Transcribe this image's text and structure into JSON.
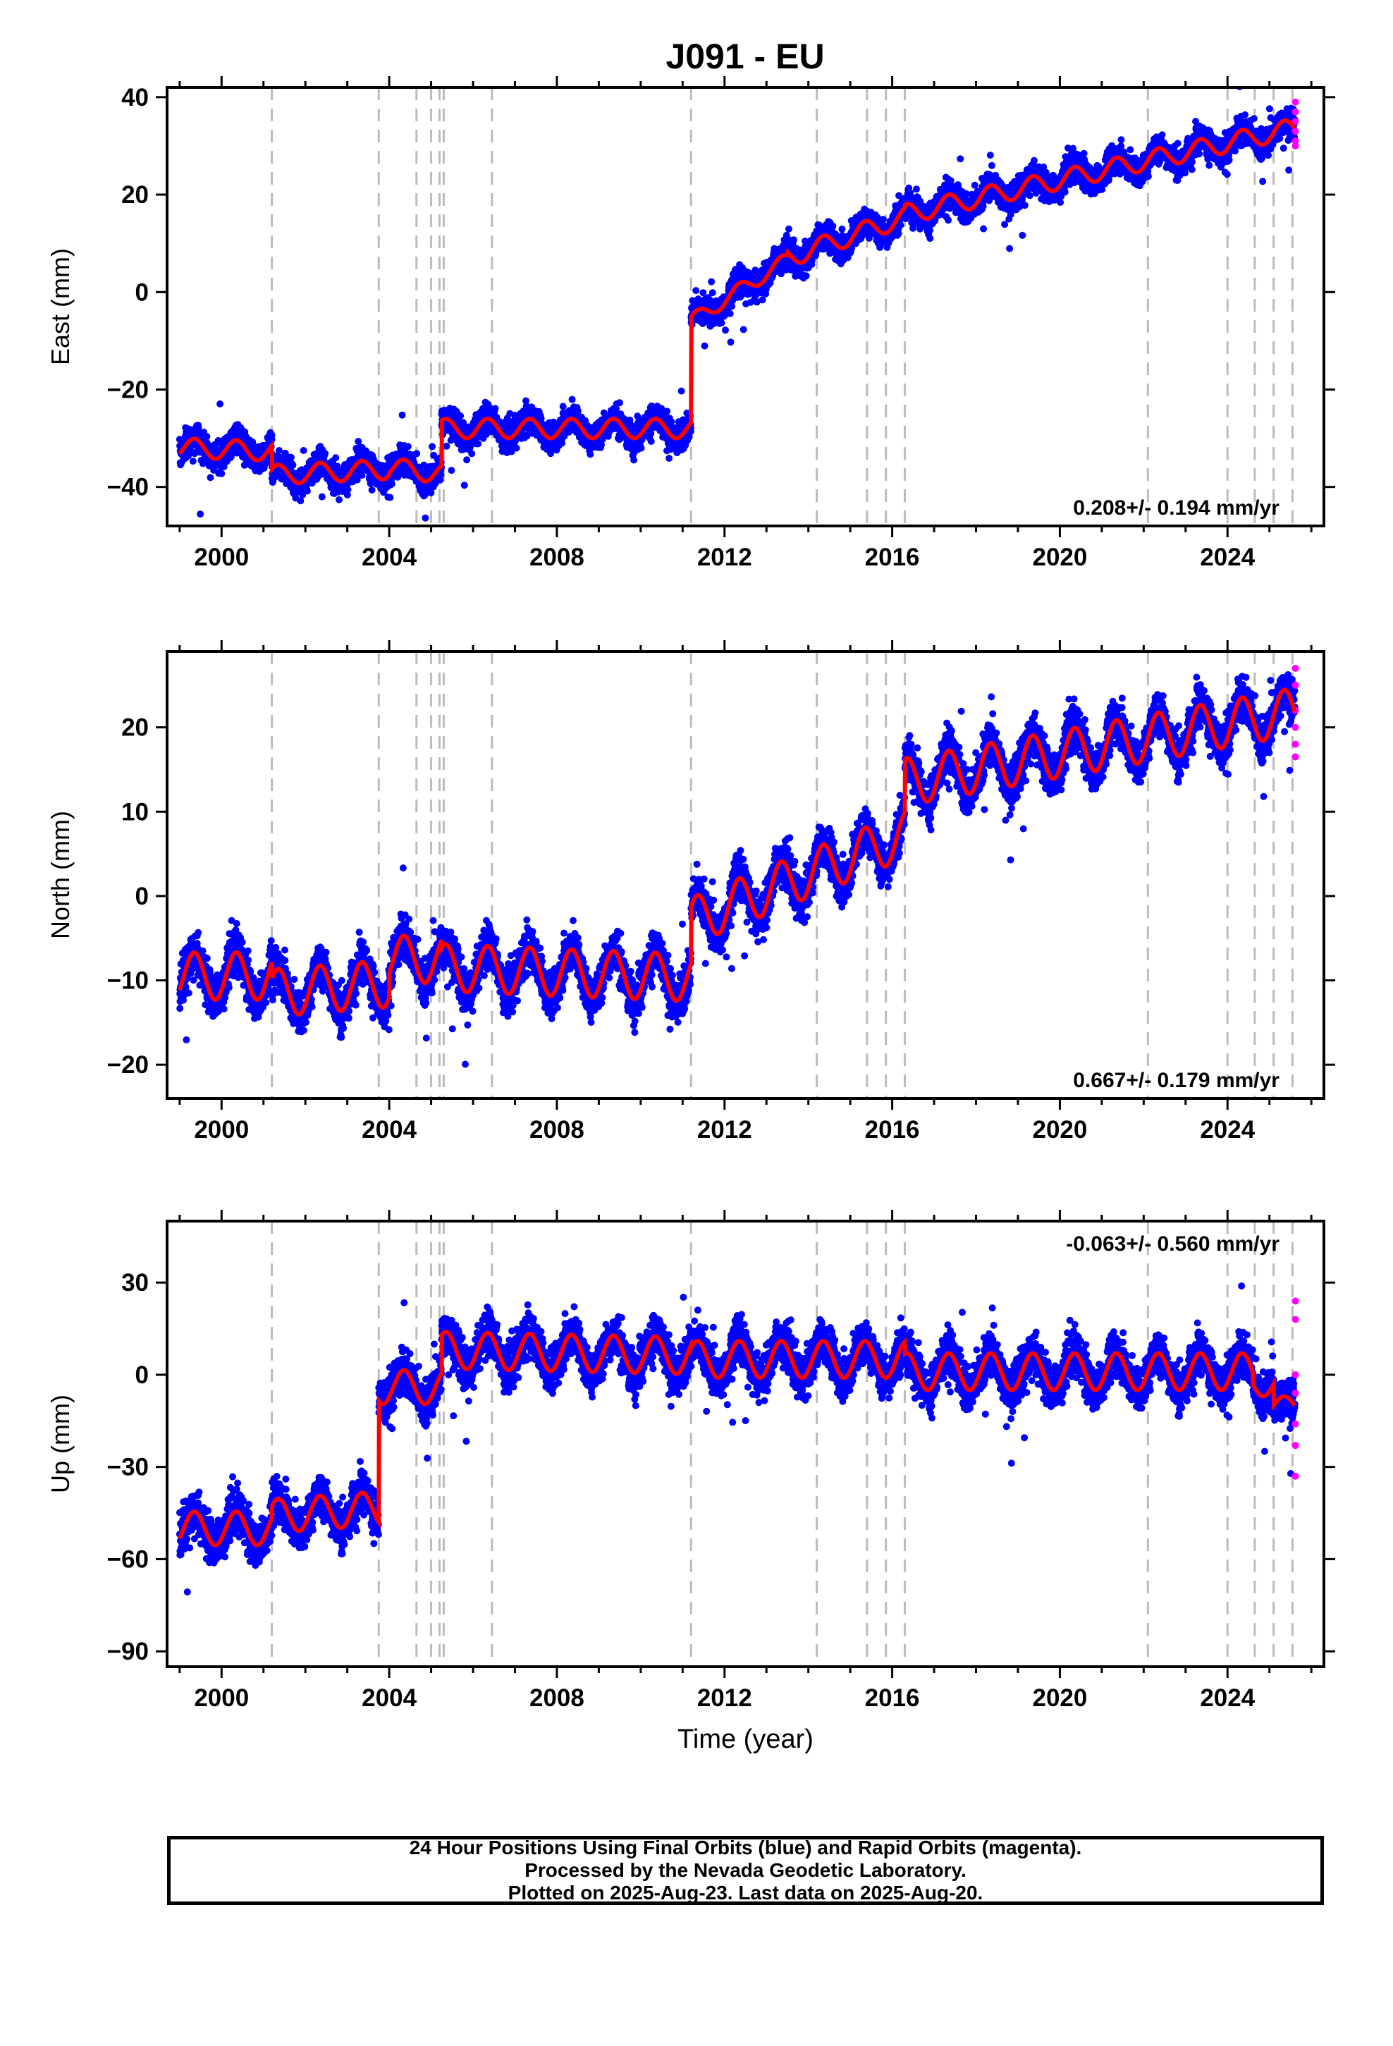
{
  "title": "J091 - EU",
  "chart_data": [
    {
      "type": "scatter",
      "panel": "east",
      "ylabel": "East (mm)",
      "xlabel": "",
      "xlim": [
        1998.7,
        2026.3
      ],
      "ylim": [
        -48,
        42
      ],
      "yticks": [
        -40,
        -20,
        0,
        20,
        40
      ],
      "xticks": [
        2000,
        2004,
        2008,
        2012,
        2016,
        2020,
        2024
      ],
      "rate_label": "0.208+/- 0.194 mm/yr",
      "rate_label_position": "bottom-right",
      "model_segments": [
        {
          "start": 1999.0,
          "end": 2001.2,
          "base": -32,
          "slope": -0.3,
          "amp": 2.0
        },
        {
          "start": 2001.2,
          "end": 2004.0,
          "base": -37.5,
          "slope": 0.4,
          "amp": 2.0
        },
        {
          "start": 2004.0,
          "end": 2005.25,
          "base": -36,
          "slope": -1.0,
          "amp": 2.0
        },
        {
          "start": 2005.25,
          "end": 2011.2,
          "base": -28,
          "slope": 0.0,
          "amp": 2.0
        },
        {
          "start": 2011.2,
          "end": 2013.5,
          "base": -6,
          "slope": 5.5,
          "amp": 1.5
        },
        {
          "start": 2013.5,
          "end": 2016.3,
          "base": 7,
          "slope": 3.0,
          "amp": 2.0
        },
        {
          "start": 2016.3,
          "end": 2025.6,
          "base": 16,
          "slope": 1.9,
          "amp": 2.0
        }
      ],
      "noise": 2.5,
      "rapid_values": [
        39,
        37,
        35,
        33,
        31,
        30
      ]
    },
    {
      "type": "scatter",
      "panel": "north",
      "ylabel": "North (mm)",
      "xlabel": "",
      "xlim": [
        1998.7,
        2026.3
      ],
      "ylim": [
        -24,
        29
      ],
      "yticks": [
        -20,
        -10,
        0,
        10,
        20
      ],
      "xticks": [
        2000,
        2004,
        2008,
        2012,
        2016,
        2020,
        2024
      ],
      "rate_label": "0.667+/- 0.179 mm/yr",
      "rate_label_position": "bottom-right",
      "model_segments": [
        {
          "start": 1999.0,
          "end": 2001.2,
          "base": -9.5,
          "slope": 0.0,
          "amp": 2.8
        },
        {
          "start": 2001.2,
          "end": 2004.0,
          "base": -11.5,
          "slope": 0.4,
          "amp": 2.8
        },
        {
          "start": 2004.0,
          "end": 2005.25,
          "base": -7.5,
          "slope": 0.0,
          "amp": 2.8
        },
        {
          "start": 2005.25,
          "end": 2011.2,
          "base": -8.5,
          "slope": -0.2,
          "amp": 2.8
        },
        {
          "start": 2011.2,
          "end": 2016.3,
          "base": -3,
          "slope": 2.0,
          "amp": 2.8
        },
        {
          "start": 2016.3,
          "end": 2025.6,
          "base": 13.5,
          "slope": 0.9,
          "amp": 2.8
        }
      ],
      "noise": 2.2,
      "rapid_values": [
        27,
        25,
        22,
        20,
        18,
        16.5
      ]
    },
    {
      "type": "scatter",
      "panel": "up",
      "ylabel": "Up (mm)",
      "xlabel": "Time (year)",
      "xlim": [
        1998.7,
        2026.3
      ],
      "ylim": [
        -95,
        50
      ],
      "yticks": [
        -90,
        -60,
        -30,
        0,
        30
      ],
      "xticks": [
        2000,
        2004,
        2008,
        2012,
        2016,
        2020,
        2024
      ],
      "rate_label": "-0.063+/- 0.560 mm/yr",
      "rate_label_position": "top-right",
      "model_segments": [
        {
          "start": 1999.0,
          "end": 2001.2,
          "base": -50,
          "slope": 0.0,
          "amp": 5.5
        },
        {
          "start": 2001.2,
          "end": 2003.75,
          "base": -46,
          "slope": 1.0,
          "amp": 5.5
        },
        {
          "start": 2003.75,
          "end": 2005.25,
          "base": -4,
          "slope": 0.0,
          "amp": 5.5
        },
        {
          "start": 2005.25,
          "end": 2011.2,
          "base": 8,
          "slope": -0.3,
          "amp": 6.0
        },
        {
          "start": 2011.2,
          "end": 2016.3,
          "base": 5,
          "slope": 0.0,
          "amp": 6.0
        },
        {
          "start": 2016.3,
          "end": 2024.6,
          "base": 1,
          "slope": 0.0,
          "amp": 6.0
        },
        {
          "start": 2024.6,
          "end": 2025.1,
          "base": -3,
          "slope": 0.0,
          "amp": 4.0
        },
        {
          "start": 2025.1,
          "end": 2025.6,
          "base": -10,
          "slope": 0.0,
          "amp": 3.0
        }
      ],
      "noise": 6.0,
      "rapid_values": [
        24,
        18,
        0,
        -6,
        -16,
        -23,
        -33
      ]
    }
  ],
  "event_lines": [
    2001.2,
    2003.75,
    2004.65,
    2005.0,
    2005.2,
    2005.3,
    2006.45,
    2011.2,
    2014.2,
    2015.4,
    2015.85,
    2016.3,
    2022.1,
    2024.0,
    2024.65,
    2025.1,
    2025.55
  ],
  "colors": {
    "final_orbits": "#0000ff",
    "rapid_orbits": "#ff00ff",
    "model": "#ff0000",
    "event_line": "#bbbbbb"
  },
  "footer": {
    "line1": "24 Hour Positions Using Final Orbits (blue) and Rapid Orbits (magenta).",
    "line2": "Processed by the Nevada Geodetic Laboratory.",
    "line3": "Plotted on 2025-Aug-23. Last data on 2025-Aug-20."
  }
}
